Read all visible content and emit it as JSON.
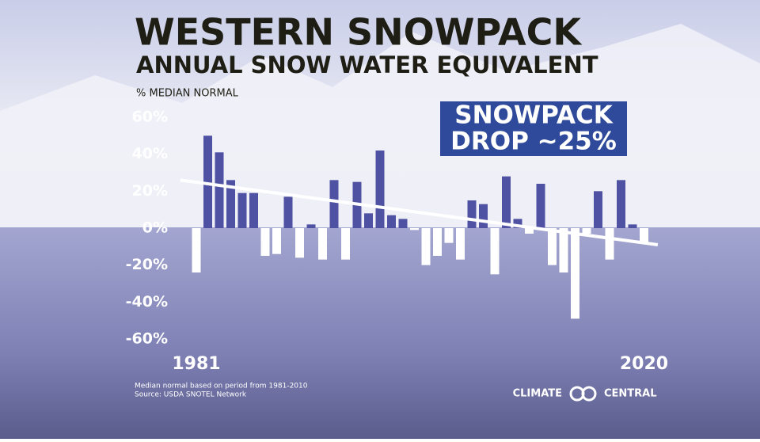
{
  "chart_data": {
    "type": "bar",
    "title": "WESTERN SNOWPACK",
    "subtitle": "ANNUAL SNOW WATER EQUIVALENT",
    "y_label": "% MEDIAN NORMAL",
    "annotation": [
      "SNOWPACK",
      "DROP ~25%"
    ],
    "categories": [
      "1981",
      null,
      null,
      null,
      null,
      null,
      null,
      null,
      null,
      null,
      null,
      null,
      null,
      null,
      null,
      null,
      null,
      null,
      null,
      null,
      null,
      null,
      null,
      null,
      null,
      null,
      null,
      null,
      null,
      null,
      null,
      null,
      null,
      null,
      null,
      null,
      null,
      null,
      null,
      "2020"
    ],
    "values": [
      -24,
      50,
      41,
      26,
      19,
      19,
      -15,
      -14,
      17,
      -16,
      2,
      -17,
      26,
      -17,
      25,
      8,
      42,
      7,
      5,
      -1,
      -20,
      -15,
      -8,
      -17,
      15,
      13,
      -25,
      28,
      5,
      -3,
      24,
      -20,
      -24,
      -49,
      -3,
      20,
      -17,
      26,
      2,
      -8
    ],
    "colors": {
      "positive": "#4f52a3",
      "negative": "#ffffff",
      "trend": "#ffffff"
    },
    "trend_values": [
      26,
      -9
    ],
    "ylim": [
      -60,
      60
    ],
    "yticks": [
      {
        "value": 60,
        "label": "60%"
      },
      {
        "value": 40,
        "label": "40%"
      },
      {
        "value": 20,
        "label": "20%"
      },
      {
        "value": 0,
        "label": "0%"
      },
      {
        "value": -20,
        "label": "-20%"
      },
      {
        "value": -40,
        "label": "-40%"
      },
      {
        "value": -60,
        "label": "-60%"
      }
    ],
    "notes": [
      "Median normal based on period from  1981-2010",
      "Source: USDA SNOTEL Network"
    ],
    "logo": [
      "CLIMATE",
      "CENTRAL"
    ]
  }
}
